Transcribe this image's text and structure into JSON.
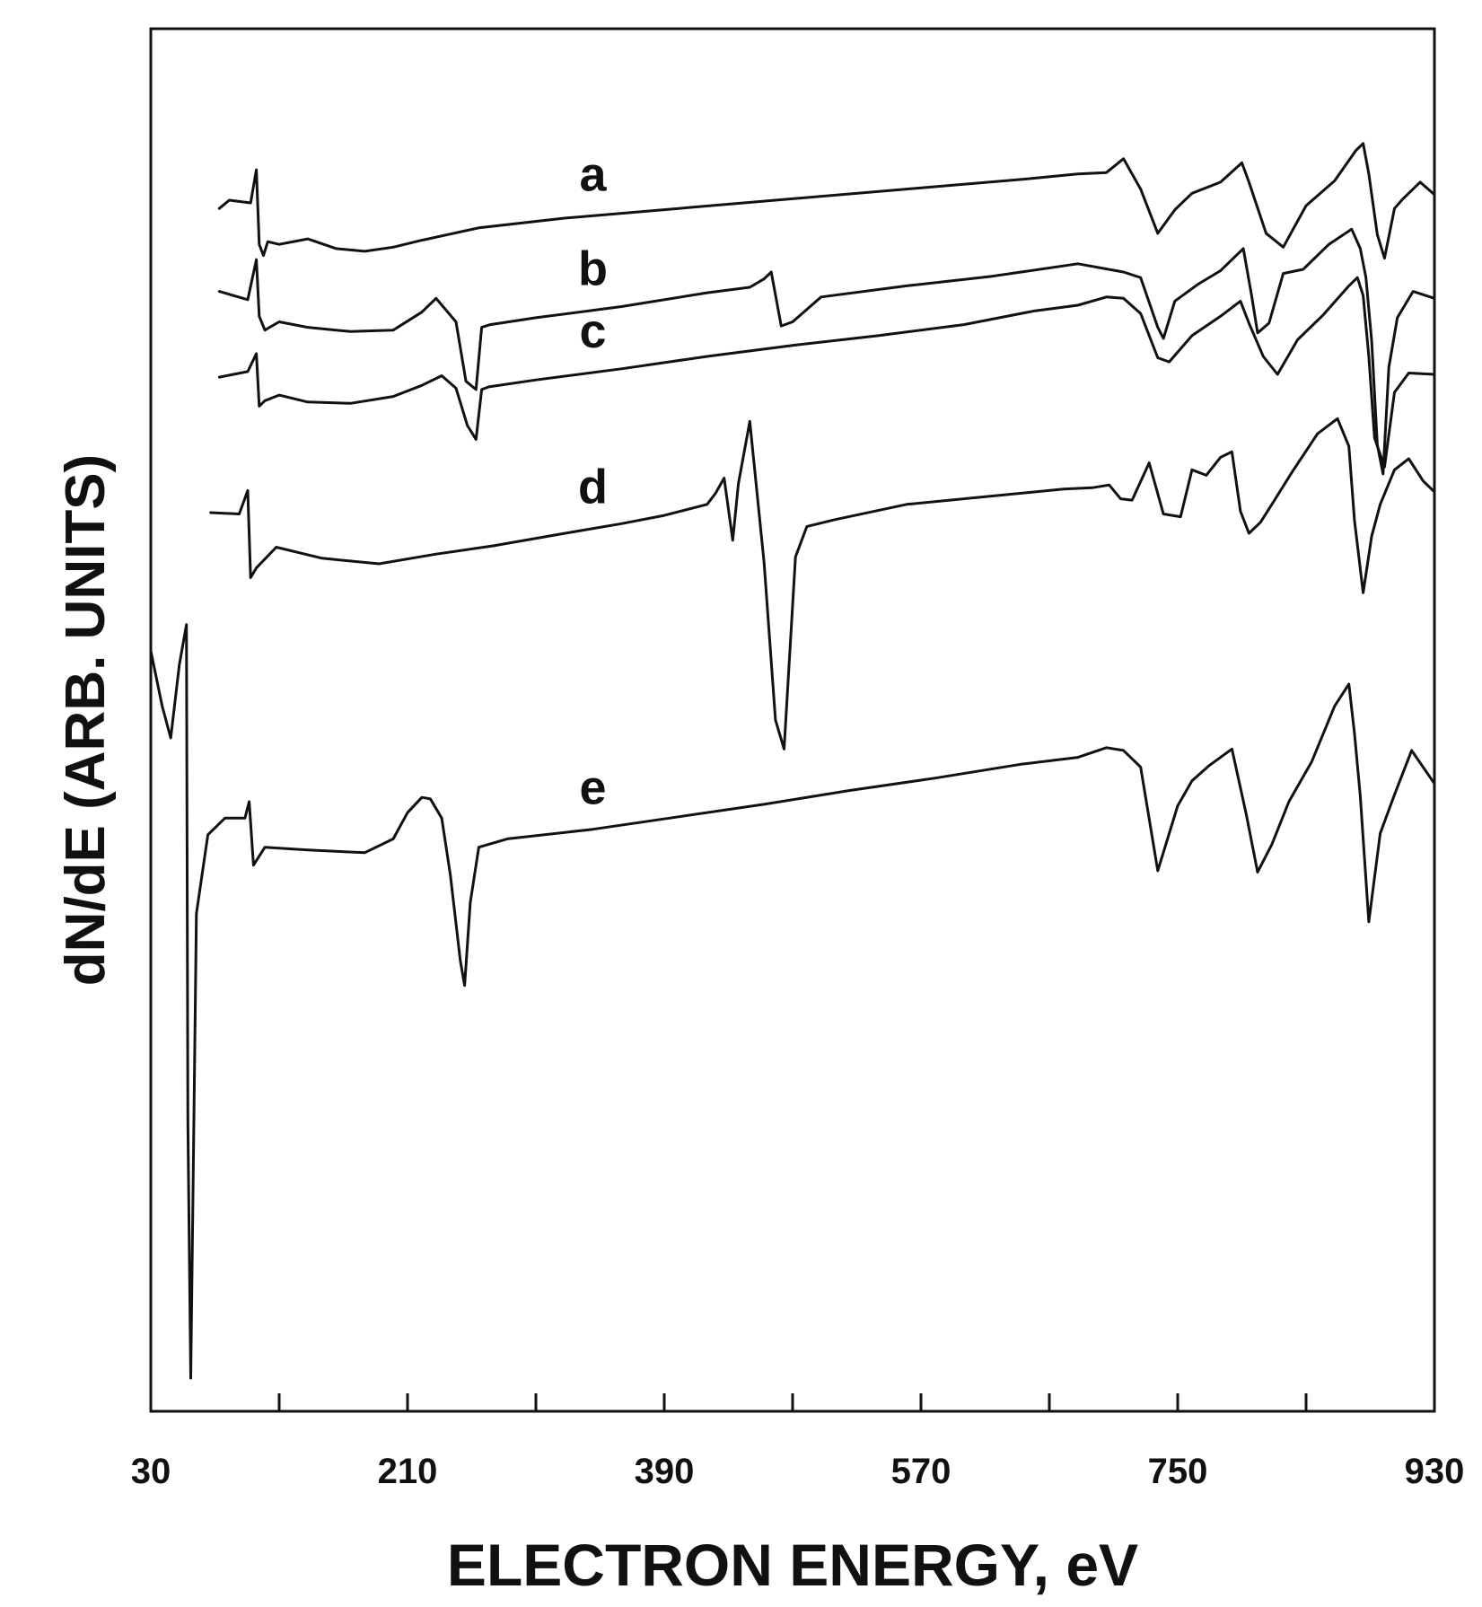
{
  "chart_data": {
    "type": "line",
    "title": "",
    "xlabel": "ELECTRON ENERGY, eV",
    "ylabel": "dN/dE (ARB. UNITS)",
    "xlim": [
      30,
      930
    ],
    "ylim": [
      0,
      100
    ],
    "x_ticks": [
      30,
      210,
      390,
      570,
      750,
      930
    ],
    "x_tick_labels": [
      "30",
      "210",
      "390",
      "570",
      "750",
      "930"
    ],
    "minor_x_ticks": [
      120,
      300,
      480,
      660,
      840
    ],
    "grid": false,
    "legend": "none",
    "series": [
      {
        "name": "a",
        "x": [
          78,
          85,
          100,
          104,
          106,
          109,
          112,
          120,
          140,
          160,
          180,
          200,
          220,
          260,
          320,
          400,
          480,
          560,
          640,
          680,
          700,
          712,
          724,
          736,
          748,
          760,
          780,
          795,
          800,
          812,
          824,
          840,
          860,
          875,
          880,
          884,
          890,
          895,
          902,
          908,
          920,
          930
        ],
        "y": [
          87.0,
          87.6,
          87.4,
          89.8,
          84.4,
          83.6,
          84.6,
          84.4,
          84.8,
          84.1,
          83.9,
          84.2,
          84.7,
          85.6,
          86.3,
          87.0,
          87.7,
          88.4,
          89.1,
          89.5,
          89.6,
          90.6,
          88.4,
          85.2,
          86.9,
          88.1,
          88.9,
          90.3,
          88.9,
          85.2,
          84.2,
          87.2,
          89.0,
          91.2,
          91.7,
          89.5,
          85.1,
          83.4,
          87.0,
          87.7,
          88.9,
          88.0
        ]
      },
      {
        "name": "b",
        "x": [
          78,
          98,
          104,
          106,
          110,
          120,
          140,
          170,
          200,
          220,
          230,
          244,
          251,
          258,
          262,
          268,
          300,
          360,
          420,
          450,
          460,
          465,
          472,
          480,
          500,
          560,
          620,
          680,
          712,
          724,
          736,
          740,
          748,
          764,
          780,
          796,
          802,
          806,
          814,
          824,
          838,
          856,
          872,
          878,
          882,
          886,
          890,
          894,
          898,
          904,
          915,
          930
        ],
        "y": [
          81.0,
          80.4,
          83.3,
          79.2,
          78.2,
          78.8,
          78.4,
          78.1,
          78.2,
          79.5,
          80.5,
          78.8,
          74.5,
          73.9,
          78.4,
          78.6,
          79.1,
          79.9,
          80.9,
          81.3,
          81.9,
          82.4,
          78.5,
          78.8,
          80.6,
          81.4,
          82.1,
          83.0,
          82.4,
          82.0,
          78.4,
          77.6,
          80.3,
          81.5,
          82.5,
          84.1,
          80.6,
          78.0,
          78.7,
          82.3,
          82.6,
          84.4,
          85.5,
          84.1,
          82.0,
          77.4,
          69.9,
          67.8,
          75.5,
          79.1,
          81.0,
          80.5
        ]
      },
      {
        "name": "c",
        "x": [
          78,
          98,
          104,
          106,
          110,
          120,
          140,
          170,
          200,
          220,
          234,
          244,
          252,
          258,
          262,
          267,
          300,
          360,
          420,
          480,
          540,
          600,
          650,
          680,
          700,
          712,
          724,
          736,
          744,
          760,
          780,
          794,
          800,
          810,
          820,
          834,
          852,
          870,
          876,
          880,
          884,
          888,
          895,
          902,
          912,
          930
        ],
        "y": [
          74.8,
          75.2,
          76.5,
          72.7,
          73.1,
          73.5,
          73.0,
          72.9,
          73.4,
          74.2,
          74.9,
          74.0,
          71.3,
          70.3,
          73.9,
          74.1,
          74.6,
          75.4,
          76.3,
          77.1,
          77.8,
          78.6,
          79.6,
          80.0,
          80.6,
          80.5,
          79.4,
          76.2,
          75.9,
          77.8,
          79.2,
          80.3,
          78.7,
          76.3,
          75.0,
          77.5,
          79.3,
          81.4,
          82.0,
          80.7,
          76.3,
          70.4,
          68.3,
          73.7,
          75.1,
          75.0
        ]
      },
      {
        "name": "d",
        "x": [
          72,
          92,
          98,
          100,
          104,
          118,
          150,
          190,
          230,
          270,
          320,
          360,
          390,
          420,
          426,
          432,
          438,
          442,
          450,
          460,
          468,
          474,
          478,
          482,
          490,
          510,
          560,
          620,
          670,
          690,
          702,
          710,
          718,
          730,
          740,
          752,
          760,
          770,
          780,
          788,
          794,
          800,
          808,
          816,
          830,
          848,
          862,
          870,
          874,
          880,
          886,
          892,
          902,
          912,
          922,
          930
        ],
        "y": [
          65.0,
          64.9,
          66.6,
          60.3,
          61.0,
          62.5,
          61.7,
          61.3,
          62.0,
          62.6,
          63.5,
          64.2,
          64.8,
          65.6,
          66.4,
          67.5,
          63.0,
          67.1,
          71.6,
          61.4,
          50.0,
          47.9,
          54.8,
          61.8,
          64.0,
          64.5,
          65.6,
          66.2,
          66.7,
          66.8,
          67.0,
          66.0,
          65.9,
          68.6,
          64.9,
          64.7,
          68.1,
          67.7,
          69.0,
          69.4,
          65.1,
          63.5,
          64.3,
          65.6,
          67.9,
          70.7,
          71.8,
          69.8,
          64.4,
          59.2,
          63.3,
          65.6,
          68.1,
          68.9,
          67.3,
          66.5
        ]
      },
      {
        "name": "e",
        "x": [
          30,
          38,
          44,
          50,
          55,
          56,
          58,
          62,
          70,
          82,
          96,
          99,
          102,
          110,
          140,
          180,
          200,
          210,
          220,
          226,
          234,
          240,
          247,
          250,
          254,
          260,
          280,
          340,
          400,
          460,
          520,
          580,
          640,
          680,
          700,
          712,
          724,
          736,
          750,
          760,
          772,
          788,
          798,
          806,
          816,
          828,
          844,
          860,
          870,
          874,
          878,
          884,
          892,
          902,
          914,
          924,
          930
        ],
        "y": [
          55.0,
          51.0,
          48.7,
          54.0,
          56.9,
          21.0,
          2.4,
          36.0,
          41.7,
          42.9,
          42.9,
          44.1,
          39.5,
          40.8,
          40.6,
          40.4,
          41.4,
          43.3,
          44.4,
          44.3,
          42.9,
          38.8,
          32.6,
          30.8,
          36.8,
          40.8,
          41.4,
          42.1,
          43.0,
          43.9,
          44.9,
          45.8,
          46.8,
          47.3,
          48.0,
          47.8,
          46.6,
          39.1,
          43.8,
          45.6,
          46.7,
          47.9,
          43.2,
          39.0,
          41.0,
          44.1,
          47.0,
          51.0,
          52.6,
          49.0,
          44.5,
          35.4,
          41.8,
          44.6,
          47.8,
          46.3,
          45.4
        ]
      }
    ]
  }
}
